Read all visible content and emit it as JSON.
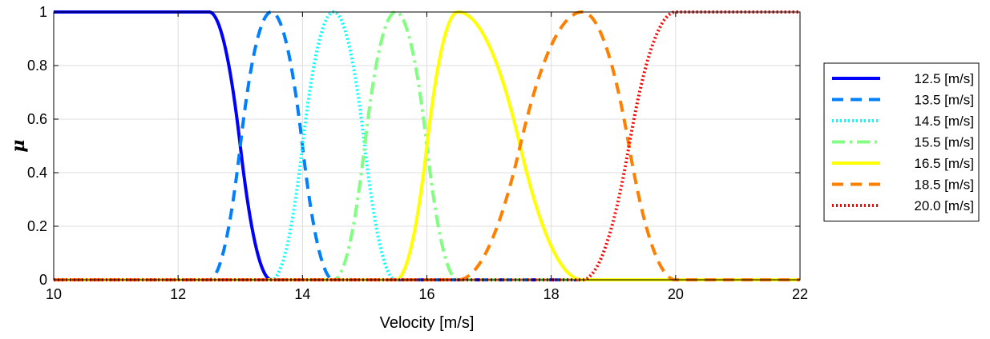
{
  "chart_data": {
    "type": "line",
    "title": "",
    "xlabel": "Velocity [m/s]",
    "ylabel": "μ",
    "xlim": [
      10,
      22
    ],
    "ylim": [
      0,
      1
    ],
    "xticks": [
      "10",
      "12",
      "14",
      "16",
      "18",
      "20",
      "22"
    ],
    "yticks": [
      "0",
      "0.2",
      "0.4",
      "0.6",
      "0.8",
      "1"
    ],
    "grid": true,
    "legend_position": "right-outside",
    "series": [
      {
        "name": "12.5 [m/s]",
        "color": "#0000FF",
        "style": "solid",
        "kind": "z-shape",
        "a": 12.5,
        "b": 13.5
      },
      {
        "name": "13.5 [m/s]",
        "color": "#0080FF",
        "style": "dashed",
        "kind": "bell",
        "a": 12.5,
        "center": 13.5,
        "b": 14.5
      },
      {
        "name": "14.5 [m/s]",
        "color": "#00FFFF",
        "style": "dotted",
        "kind": "bell",
        "a": 13.5,
        "center": 14.5,
        "b": 15.5
      },
      {
        "name": "15.5 [m/s]",
        "color": "#80FF80",
        "style": "dashdot",
        "kind": "bell",
        "a": 14.5,
        "center": 15.5,
        "b": 16.5
      },
      {
        "name": "16.5 [m/s]",
        "color": "#FFFF00",
        "style": "solid",
        "kind": "bell",
        "a": 15.5,
        "center": 16.5,
        "b": 18.5
      },
      {
        "name": "18.5 [m/s]",
        "color": "#FF8000",
        "style": "dashed",
        "kind": "bell",
        "a": 16.5,
        "center": 18.5,
        "b": 20.0
      },
      {
        "name": "20.0 [m/s]",
        "color": "#FF0000",
        "style": "dotted",
        "kind": "s-shape",
        "a": 18.5,
        "b": 20.0
      }
    ]
  }
}
